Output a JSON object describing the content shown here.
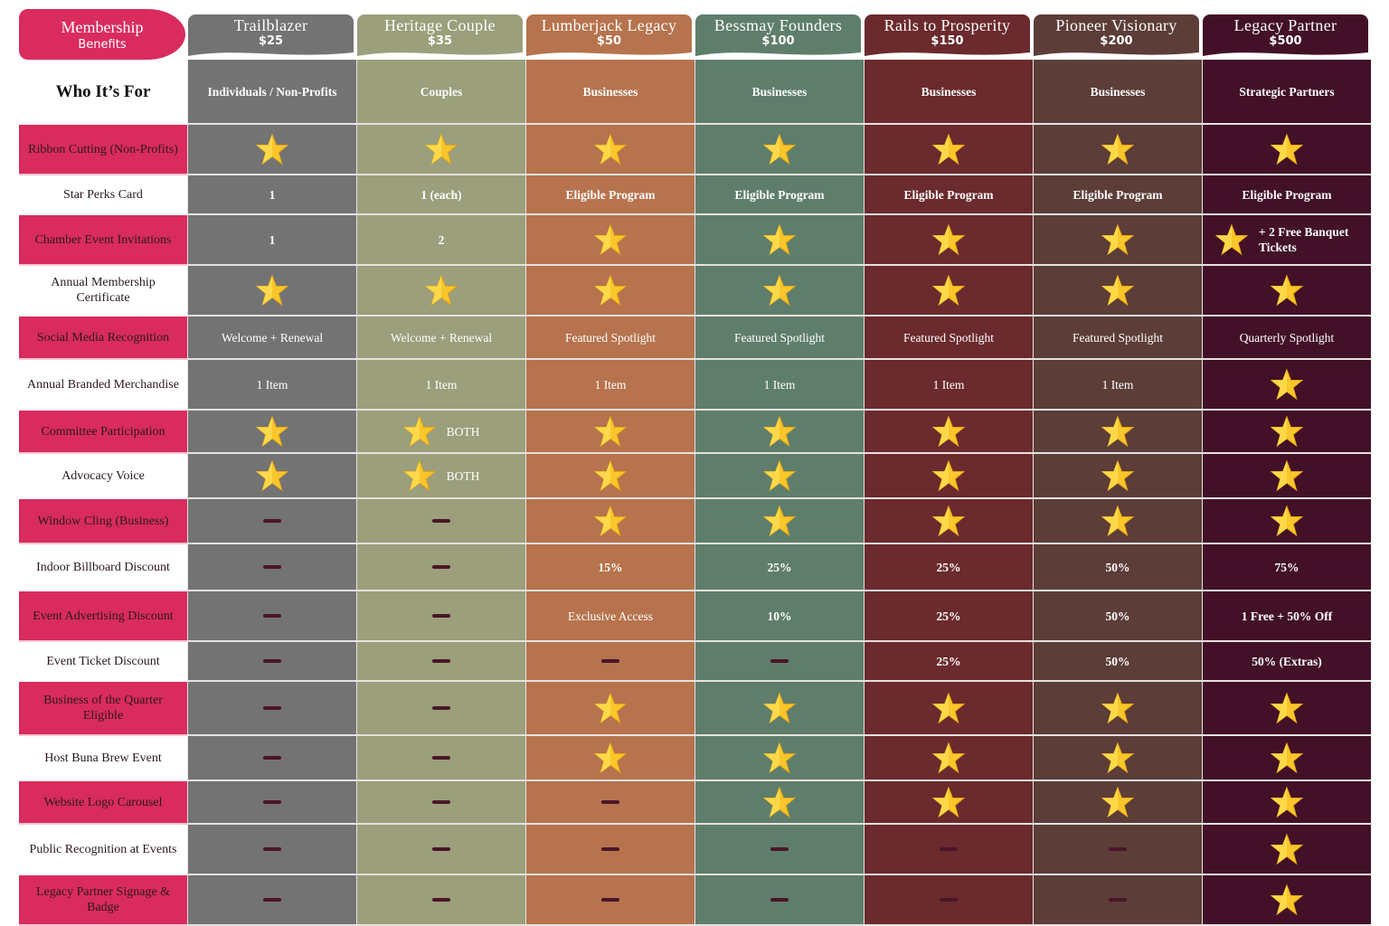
{
  "title": {
    "line1": "Membership",
    "line2": "Benefits"
  },
  "tiers": [
    {
      "name": "Trailblazer",
      "price": "$25",
      "color": "#737373"
    },
    {
      "name": "Heritage Couple",
      "price": "$35",
      "color": "#9b9f7b"
    },
    {
      "name": "Lumberjack Legacy",
      "price": "$50",
      "color": "#b6734d"
    },
    {
      "name": "Bessmay Founders",
      "price": "$100",
      "color": "#5e7e6b"
    },
    {
      "name": "Rails to Prosperity",
      "price": "$150",
      "color": "#6b2a2d"
    },
    {
      "name": "Pioneer Visionary",
      "price": "$200",
      "color": "#5c3d38"
    },
    {
      "name": "Legacy Partner",
      "price": "$500",
      "color": "#421127"
    }
  ],
  "who": {
    "label": "Who It’s For",
    "values": [
      "Individuals / Non-Profits",
      "Couples",
      "Businesses",
      "Businesses",
      "Businesses",
      "Businesses",
      "Strategic Partners"
    ]
  },
  "benefits": [
    {
      "label": "Ribbon Cutting (Non-Profits)",
      "cells": [
        "star",
        "star",
        "star",
        "star",
        "star",
        "star",
        "star"
      ]
    },
    {
      "label": "Star Perks Card",
      "cells": [
        "1",
        "1 (each)",
        "Eligible Program",
        "Eligible Program",
        "Eligible Program",
        "Eligible Program",
        "Eligible Program"
      ]
    },
    {
      "label": "Chamber Event Invitations",
      "cells": [
        "1",
        "2",
        "star",
        "star",
        "star",
        "star",
        "star"
      ],
      "extra": "+ 2 Free Banquet Tickets"
    },
    {
      "label": "Annual Membership Certificate",
      "cells": [
        "star",
        "star",
        "star",
        "star",
        "star",
        "star",
        "star"
      ]
    },
    {
      "label": "Social Media Recognition",
      "cells": [
        "Welcome + Renewal",
        "Welcome + Renewal",
        "Featured Spotlight",
        "Featured Spotlight",
        "Featured Spotlight",
        "Featured Spotlight",
        "Quarterly Spotlight"
      ]
    },
    {
      "label": "Annual Branded Merchandise",
      "cells": [
        "1 Item",
        "1 Item",
        "1 Item",
        "1 Item",
        "1 Item",
        "1 Item",
        "star"
      ]
    },
    {
      "label": "Committee Participation",
      "cells": [
        "star",
        "star",
        "star",
        "star",
        "star",
        "star",
        "star"
      ],
      "note": "BOTH"
    },
    {
      "label": "Advocacy Voice",
      "cells": [
        "star",
        "star",
        "star",
        "star",
        "star",
        "star",
        "star"
      ],
      "note": "BOTH"
    },
    {
      "label": "Window Cling (Business)",
      "cells": [
        "dash",
        "dash",
        "star",
        "star",
        "star",
        "star",
        "star"
      ]
    },
    {
      "label": "Indoor Billboard Discount",
      "cells": [
        "dash",
        "dash",
        "15%",
        "25%",
        "25%",
        "50%",
        "75%"
      ]
    },
    {
      "label": "Event Advertising Discount",
      "cells": [
        "dash",
        "dash",
        "Exclusive Access",
        "10%",
        "25%",
        "50%",
        "1 Free + 50% Off"
      ]
    },
    {
      "label": "Event Ticket Discount",
      "cells": [
        "dash",
        "dash",
        "dash",
        "dash",
        "25%",
        "50%",
        "50% (Extras)"
      ]
    },
    {
      "label": "Business of the Quarter Eligible",
      "cells": [
        "dash",
        "dash",
        "star",
        "star",
        "star",
        "star",
        "star"
      ]
    },
    {
      "label": "Host Buna Brew Event",
      "cells": [
        "dash",
        "dash",
        "star",
        "star",
        "star",
        "star",
        "star"
      ]
    },
    {
      "label": "Website Logo Carousel",
      "cells": [
        "dash",
        "dash",
        "dash",
        "star",
        "star",
        "star",
        "star"
      ]
    },
    {
      "label": "Public Recognition at Events",
      "cells": [
        "dash",
        "dash",
        "dash",
        "dash",
        "dash",
        "dash",
        "star"
      ]
    },
    {
      "label": "Legacy Partner Signage & Badge",
      "cells": [
        "dash",
        "dash",
        "dash",
        "dash",
        "dash",
        "dash",
        "star"
      ]
    }
  ],
  "colors": {
    "accent": "#d92b5e",
    "star": "#f7c52a",
    "dash": "#4a1628"
  }
}
